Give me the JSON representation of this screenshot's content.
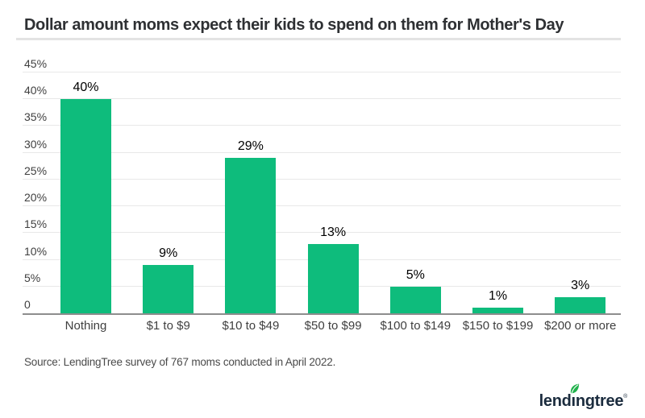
{
  "header": {
    "title": "Dollar amount moms expect their kids to spend on them for Mother's Day"
  },
  "chart_data": {
    "type": "bar",
    "title": "Dollar amount moms expect their kids to spend on them for Mother's Day",
    "categories": [
      "Nothing",
      "$1 to $9",
      "$10 to $49",
      "$50 to $99",
      "$100 to $149",
      "$150 to $199",
      "$200 or more"
    ],
    "values": [
      40,
      9,
      29,
      13,
      5,
      1,
      3
    ],
    "value_labels": [
      "40%",
      "9%",
      "29%",
      "13%",
      "5%",
      "1%",
      "3%"
    ],
    "xlabel": "",
    "ylabel": "",
    "ylim": [
      0,
      45
    ],
    "y_ticks": [
      {
        "v": 45,
        "label": "45%"
      },
      {
        "v": 40,
        "label": "40%"
      },
      {
        "v": 35,
        "label": "35%"
      },
      {
        "v": 30,
        "label": "30%"
      },
      {
        "v": 25,
        "label": "25%"
      },
      {
        "v": 20,
        "label": "20%"
      },
      {
        "v": 15,
        "label": "15%"
      },
      {
        "v": 10,
        "label": "10%"
      },
      {
        "v": 5,
        "label": "5%"
      },
      {
        "v": 0,
        "label": "0"
      }
    ],
    "grid": true,
    "legend_position": "none",
    "bar_color": "#0ebc7c"
  },
  "footer": {
    "source": "Source: LendingTree survey of 767 moms conducted in April 2022.",
    "logo": {
      "name": "lendingtree",
      "text_pre": "lend",
      "text_i": "ı",
      "text_post": "ngtree",
      "registered": "®",
      "text_color": "#1b2c3e",
      "leaf_color": "#21b24c"
    }
  }
}
